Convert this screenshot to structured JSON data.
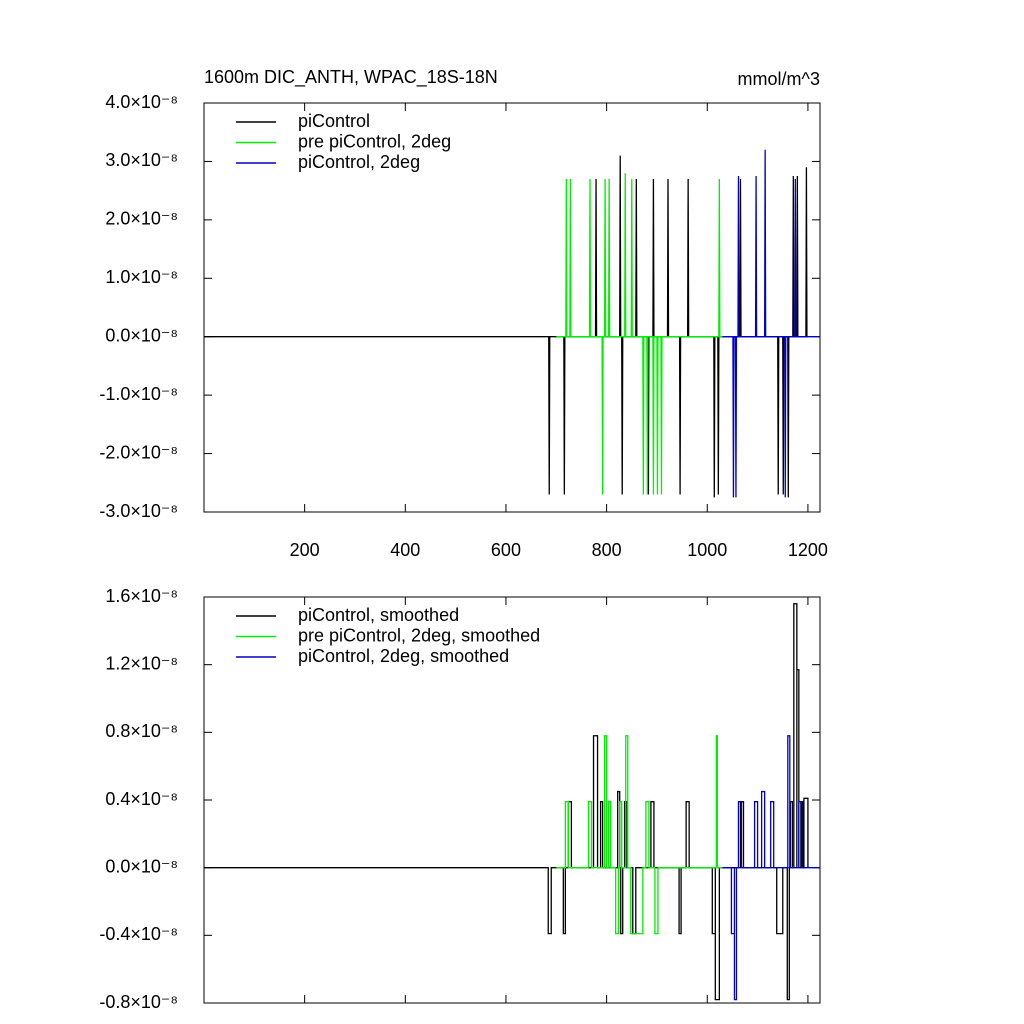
{
  "chart_data": [
    {
      "type": "line",
      "title": "1600m DIC_ANTH, WPAC_18S-18N",
      "units": "mmol/m^3",
      "legend": "upper left",
      "xlim": [
        0,
        1224
      ],
      "xticks": [
        200,
        400,
        600,
        800,
        1000,
        1200
      ],
      "ylim": [
        -3e-08,
        4e-08
      ],
      "yticks": [
        {
          "value": 4e-08,
          "label": "4.0×10⁻⁸"
        },
        {
          "value": 3e-08,
          "label": "3.0×10⁻⁸"
        },
        {
          "value": 2e-08,
          "label": "2.0×10⁻⁸"
        },
        {
          "value": 1e-08,
          "label": "1.0×10⁻⁸"
        },
        {
          "value": 0,
          "label": "0.0×10⁻⁸"
        },
        {
          "value": -1e-08,
          "label": "-1.0×10⁻⁸"
        },
        {
          "value": -2e-08,
          "label": "-2.0×10⁻⁸"
        },
        {
          "value": -3e-08,
          "label": "-3.0×10⁻⁸"
        }
      ],
      "series": [
        {
          "name": "piControl",
          "color": "#000000",
          "x": [
            0,
            685,
            686,
            687,
            715,
            716,
            717,
            778,
            779,
            780,
            826,
            827,
            828,
            830,
            831,
            832,
            858,
            859,
            860,
            882,
            883,
            884,
            892,
            893,
            894,
            921,
            922,
            923,
            945,
            946,
            947,
            961,
            962,
            963,
            1013,
            1014,
            1015,
            1021,
            1022,
            1023,
            1065,
            1066,
            1067,
            1140,
            1141,
            1142,
            1150,
            1151,
            1152,
            1160,
            1161,
            1162,
            1170,
            1171,
            1172,
            1178,
            1179,
            1180,
            1196,
            1197,
            1198,
            1200
          ],
          "values": [
            0,
            0,
            -2.7e-08,
            0,
            0,
            -2.7e-08,
            0,
            0,
            2.7e-08,
            0,
            0,
            3.1e-08,
            0,
            0,
            -2.7e-08,
            0,
            0,
            2.7e-08,
            0,
            0,
            -2.7e-08,
            0,
            0,
            2.7e-08,
            0,
            0,
            2.7e-08,
            0,
            0,
            -2.7e-08,
            0,
            0,
            2.7e-08,
            0,
            0,
            -2.75e-08,
            0,
            0,
            -2.7e-08,
            0,
            0,
            2.7e-08,
            0,
            0,
            -2.7e-08,
            0,
            0,
            -2.7e-08,
            0,
            0,
            -2.75e-08,
            0,
            0,
            2.75e-08,
            0,
            0,
            2.75e-08,
            0,
            0,
            2.9e-08,
            0,
            0
          ]
        },
        {
          "name": "pre piControl, 2deg",
          "color": "#00ee00",
          "x": [
            700,
            719,
            720,
            721,
            727,
            728,
            729,
            766,
            767,
            768,
            791,
            792,
            793,
            796,
            797,
            798,
            804,
            805,
            806,
            836,
            837,
            838,
            849,
            850,
            851,
            872,
            873,
            874,
            880,
            881,
            882,
            892,
            893,
            894,
            900,
            901,
            902,
            908,
            909,
            910,
            1023,
            1024,
            1025,
            1030
          ],
          "values": [
            0,
            0,
            2.7e-08,
            0,
            0,
            2.7e-08,
            0,
            0,
            2.7e-08,
            0,
            0,
            -2.7e-08,
            0,
            0,
            2.7e-08,
            0,
            0,
            2.7e-08,
            0,
            0,
            2.8e-08,
            0,
            0,
            2.7e-08,
            0,
            0,
            -2.7e-08,
            0,
            0,
            -2.7e-08,
            0,
            0,
            -2.7e-08,
            0,
            0,
            -2.7e-08,
            0,
            0,
            -2.7e-08,
            0,
            0,
            2.7e-08,
            0,
            0
          ]
        },
        {
          "name": "piControl, 2deg",
          "color": "#0000cc",
          "x": [
            1030,
            1051,
            1052,
            1053,
            1056,
            1057,
            1058,
            1061,
            1062,
            1063,
            1096,
            1097,
            1098,
            1114,
            1115,
            1116,
            1154,
            1155,
            1156,
            1174,
            1175,
            1176,
            1224
          ],
          "values": [
            0,
            0,
            -2.75e-08,
            0,
            0,
            -2.75e-08,
            0,
            0,
            2.75e-08,
            0,
            0,
            2.75e-08,
            0,
            0,
            3.2e-08,
            0,
            0,
            -2.75e-08,
            0,
            0,
            2.7e-08,
            0,
            0
          ]
        }
      ]
    },
    {
      "type": "line",
      "legend": "upper left",
      "xlim": [
        0,
        1224
      ],
      "ylim": [
        -8e-09,
        1.6e-08
      ],
      "yticks": [
        {
          "value": 1.6e-08,
          "label": "1.6×10⁻⁸"
        },
        {
          "value": 1.2e-08,
          "label": "1.2×10⁻⁸"
        },
        {
          "value": 8e-09,
          "label": "0.8×10⁻⁸"
        },
        {
          "value": 4e-09,
          "label": "0.4×10⁻⁸"
        },
        {
          "value": 0,
          "label": "0.0×10⁻⁸"
        },
        {
          "value": -4e-09,
          "label": "-0.4×10⁻⁸"
        },
        {
          "value": -8e-09,
          "label": "-0.8×10⁻⁸"
        }
      ],
      "series": [
        {
          "name": "piControl, smoothed",
          "color": "#000000",
          "x": [
            0,
            684,
            684,
            690,
            690,
            714,
            714,
            718,
            718,
            724,
            724,
            730,
            730,
            774,
            774,
            782,
            782,
            788,
            788,
            792,
            792,
            822,
            822,
            826,
            826,
            828,
            828,
            832,
            832,
            836,
            836,
            840,
            840,
            852,
            852,
            858,
            858,
            888,
            888,
            894,
            894,
            944,
            944,
            948,
            948,
            958,
            958,
            964,
            964,
            1010,
            1010,
            1016,
            1016,
            1016,
            1016,
            1024,
            1024,
            1066,
            1066,
            1072,
            1072,
            1138,
            1138,
            1150,
            1150,
            1159,
            1159,
            1163,
            1163,
            1165,
            1165,
            1169,
            1169,
            1172,
            1172,
            1178,
            1178,
            1178,
            1178,
            1182,
            1182,
            1186,
            1186,
            1190,
            1190,
            1192,
            1192,
            1200,
            1200
          ],
          "values": [
            0,
            0,
            -3.9e-09,
            -3.9e-09,
            0,
            0,
            -3.9e-09,
            -3.9e-09,
            0,
            0,
            3.9e-09,
            3.9e-09,
            0,
            0,
            7.8e-09,
            7.8e-09,
            0,
            0,
            3.9e-09,
            3.9e-09,
            0,
            0,
            4.5e-09,
            4.5e-09,
            0,
            0,
            -3.9e-09,
            -3.9e-09,
            0,
            0,
            3.9e-09,
            3.9e-09,
            0,
            0,
            -3.9e-09,
            -3.9e-09,
            0,
            0,
            3.9e-09,
            3.9e-09,
            0,
            0,
            -3.9e-09,
            -3.9e-09,
            0,
            0,
            3.9e-09,
            3.9e-09,
            0,
            0,
            -3.9e-09,
            -3.9e-09,
            0,
            0,
            -7.8e-09,
            -7.8e-09,
            0,
            0,
            3.9e-09,
            3.9e-09,
            0,
            0,
            -3.9e-09,
            -3.9e-09,
            0,
            0,
            -7.8e-09,
            -7.8e-09,
            0,
            0,
            3.9e-09,
            3.9e-09,
            0,
            0,
            1.56e-08,
            1.56e-08,
            0,
            0,
            1.17e-08,
            1.17e-08,
            0,
            0,
            3.9e-09,
            3.9e-09,
            0,
            0,
            4.1e-09,
            4.1e-09,
            0
          ]
        },
        {
          "name": "pre piControl, 2deg, smoothed",
          "color": "#00ee00",
          "x": [
            700,
            718,
            718,
            724,
            724,
            764,
            764,
            770,
            770,
            796,
            796,
            800,
            800,
            804,
            804,
            808,
            808,
            818,
            818,
            824,
            824,
            826,
            826,
            830,
            830,
            838,
            838,
            842,
            842,
            848,
            848,
            872,
            872,
            878,
            878,
            884,
            884,
            896,
            896,
            902,
            902,
            1018,
            1018,
            1020,
            1020,
            1030
          ],
          "values": [
            0,
            0,
            3.9e-09,
            3.9e-09,
            0,
            0,
            3.9e-09,
            3.9e-09,
            0,
            0,
            7.8e-09,
            7.8e-09,
            0,
            0,
            3.9e-09,
            3.9e-09,
            0,
            0,
            -3.9e-09,
            -3.9e-09,
            0,
            0,
            3.9e-09,
            3.9e-09,
            0,
            0,
            7.8e-09,
            7.8e-09,
            0,
            0,
            -3.9e-09,
            -3.9e-09,
            0,
            0,
            3.9e-09,
            3.9e-09,
            0,
            0,
            -3.9e-09,
            -3.9e-09,
            0,
            0,
            7.8e-09,
            7.8e-09,
            0,
            0
          ]
        },
        {
          "name": "piControl, 2deg, smoothed",
          "color": "#0000cc",
          "x": [
            1030,
            1048,
            1048,
            1054,
            1054,
            1054,
            1054,
            1058,
            1058,
            1062,
            1062,
            1068,
            1068,
            1094,
            1094,
            1100,
            1100,
            1108,
            1108,
            1114,
            1114,
            1126,
            1126,
            1132,
            1132,
            1160,
            1160,
            1164,
            1164,
            1182,
            1182,
            1188,
            1188,
            1224
          ],
          "values": [
            0,
            0,
            -3.9e-09,
            -3.9e-09,
            0,
            0,
            -7.8e-09,
            -7.8e-09,
            0,
            0,
            3.9e-09,
            3.9e-09,
            0,
            0,
            3.9e-09,
            3.9e-09,
            0,
            0,
            4.5e-09,
            4.5e-09,
            0,
            0,
            3.9e-09,
            3.9e-09,
            0,
            0,
            7.8e-09,
            7.8e-09,
            0,
            0,
            3.9e-09,
            3.9e-09,
            0,
            0
          ]
        }
      ]
    }
  ]
}
